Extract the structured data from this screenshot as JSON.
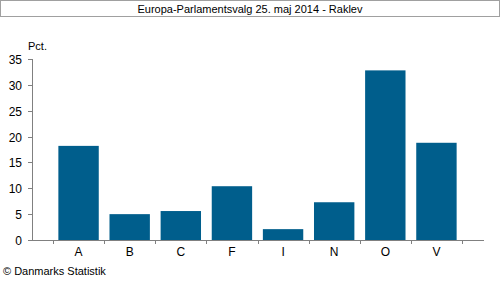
{
  "chart_data": {
    "type": "bar",
    "title": "Europa-Parlamentsvalg 25. maj 2014 - Raklev",
    "y_label": "Pct.",
    "source": "© Danmarks Statistik",
    "categories": [
      "A",
      "B",
      "C",
      "F",
      "I",
      "N",
      "O",
      "V"
    ],
    "values": [
      18.2,
      5.0,
      5.6,
      10.4,
      2.1,
      7.3,
      32.8,
      18.8
    ],
    "color": "#005e8c",
    "ylim": [
      0,
      35
    ],
    "yticks": [
      0,
      5,
      10,
      15,
      20,
      25,
      30,
      35
    ],
    "grid": false
  }
}
